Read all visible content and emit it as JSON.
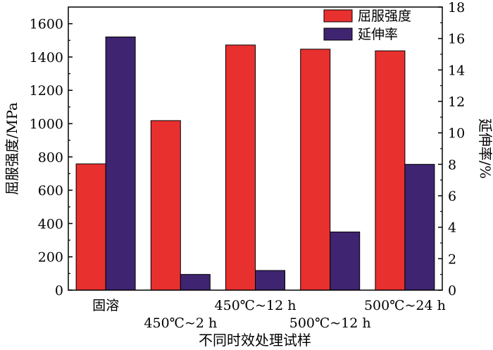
{
  "chart_data": {
    "type": "bar",
    "categories": [
      "固溶",
      "450℃~2 h",
      "450℃~12 h",
      "500℃~12 h",
      "500℃~24 h"
    ],
    "series": [
      {
        "name": "屈服强度",
        "axis": "left",
        "color": "#e8302f",
        "values": [
          758,
          1018,
          1472,
          1447,
          1437
        ]
      },
      {
        "name": "延伸率",
        "axis": "right",
        "color": "#3f2471",
        "values": [
          16.1,
          1.0,
          1.25,
          3.7,
          8.0
        ]
      }
    ],
    "xlabel": "不同时效处理试样",
    "ylabel": "屈服强度/MPa",
    "y2label": "延伸率/%",
    "ylim": [
      0,
      1700
    ],
    "y2lim": [
      0,
      18
    ],
    "yticks": [
      0,
      200,
      400,
      600,
      800,
      1000,
      1200,
      1400,
      1600
    ],
    "y2ticks": [
      0,
      2,
      4,
      6,
      8,
      10,
      12,
      14,
      16,
      18
    ],
    "legend": "top-right",
    "grid": false
  }
}
